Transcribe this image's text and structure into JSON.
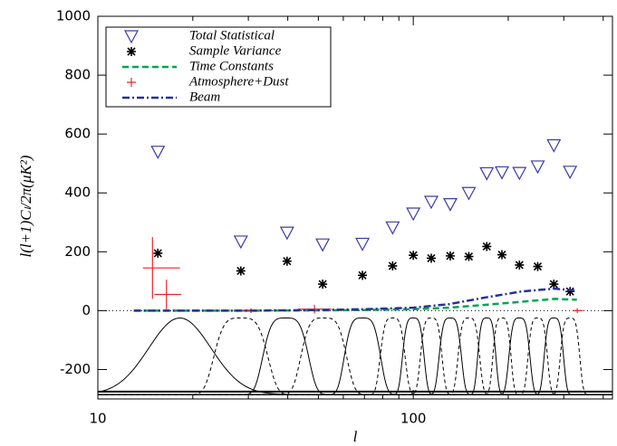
{
  "chart_data": {
    "type": "scatter",
    "x_label": "l",
    "y_label": "l(l+1)Cₗ/2π(μK²)",
    "x_scale": "log",
    "xlim": [
      10,
      428
    ],
    "ylim": [
      -300,
      1000
    ],
    "xticks": [
      10,
      100
    ],
    "x_minor_ticks": [
      20,
      30,
      40,
      50,
      60,
      70,
      80,
      90,
      200,
      300,
      400
    ],
    "yticks": [
      -200,
      0,
      200,
      400,
      600,
      800,
      1000
    ],
    "legend": "upper left",
    "series": [
      {
        "name": "Total Statistical",
        "style": "triangle",
        "color": "#3b3ba8",
        "x": [
          15.5,
          28.4,
          39.8,
          51.6,
          69,
          86,
          100,
          114,
          131,
          150,
          171,
          191,
          217,
          248,
          279,
          314
        ],
        "values": [
          540,
          235,
          265,
          225,
          227,
          283,
          330,
          370,
          362,
          400,
          467,
          470,
          468,
          490,
          562,
          472
        ]
      },
      {
        "name": "Sample Variance",
        "style": "asterisk",
        "color": "#000000",
        "x": [
          15.5,
          28.4,
          39.8,
          51.6,
          69,
          86,
          100,
          114,
          131,
          150,
          171,
          191,
          217,
          248,
          279,
          314
        ],
        "values": [
          195,
          135,
          168,
          90,
          120,
          152,
          188,
          178,
          186,
          184,
          218,
          190,
          155,
          150,
          90,
          65
        ]
      },
      {
        "name": "Time Constants",
        "style": "dashed",
        "color": "#00a651",
        "x": [
          13,
          30,
          50,
          70,
          100,
          130,
          170,
          220,
          280,
          330
        ],
        "values": [
          0,
          0,
          1,
          2,
          5,
          10,
          20,
          30,
          40,
          37
        ]
      },
      {
        "name": "Atmosphere+Dust",
        "style": "errorbar",
        "color": "#e8262a",
        "x": [
          14.9,
          16.5,
          30.6,
          48.6,
          331
        ],
        "values": [
          145,
          55,
          0,
          5,
          0
        ],
        "y_err": [
          105,
          50,
          8,
          15,
          8
        ],
        "x_low": [
          13.9,
          15.1,
          29,
          43,
          320
        ],
        "x_high": [
          18.2,
          18.4,
          32,
          55,
          345
        ]
      },
      {
        "name": "Beam",
        "style": "dashdot",
        "color": "#26309a",
        "x": [
          13,
          30,
          50,
          70,
          100,
          130,
          170,
          220,
          280,
          330
        ],
        "values": [
          0,
          0,
          2,
          5,
          10,
          22,
          45,
          65,
          75,
          68
        ]
      }
    ],
    "window_functions": {
      "centers": [
        18.2,
        28.4,
        39.4,
        52,
        69,
        86,
        100,
        114,
        131,
        150,
        171,
        191,
        217,
        248,
        279,
        314
      ],
      "peak": -25,
      "base": -285,
      "baseline": -275,
      "color": "#000000"
    }
  }
}
